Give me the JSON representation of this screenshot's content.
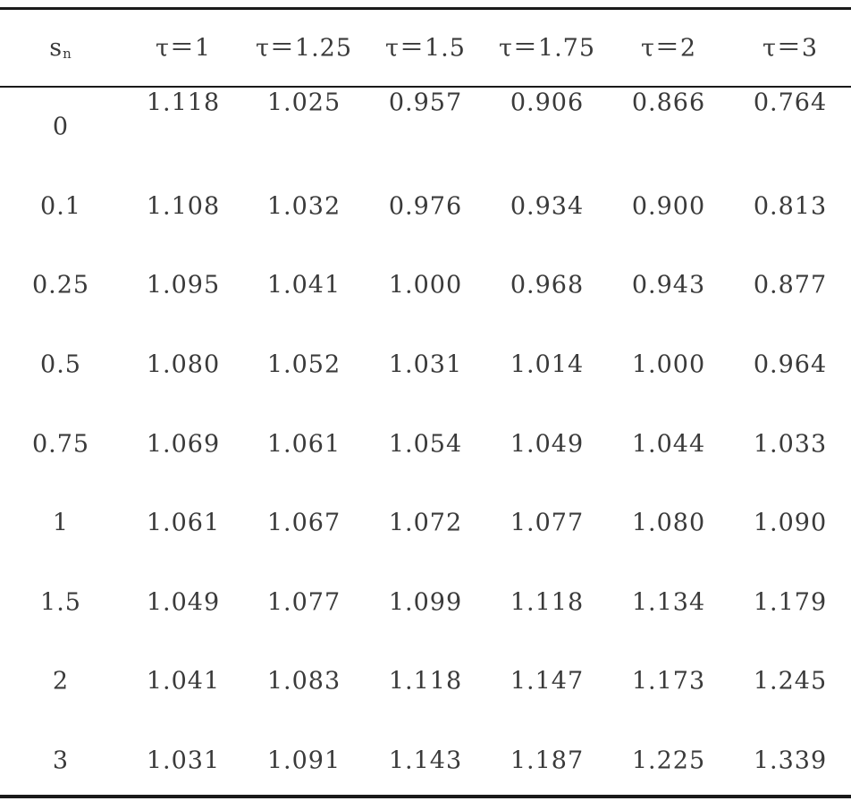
{
  "chart_data": {
    "type": "table",
    "header": {
      "row_label": {
        "base": "s",
        "subscript": "n"
      },
      "columns": [
        "τ＝1",
        "τ＝1.25",
        "τ＝1.5",
        "τ＝1.75",
        "τ＝2",
        "τ＝3"
      ]
    },
    "rows": [
      {
        "s_n": "0",
        "values": [
          "1.118",
          "1.025",
          "0.957",
          "0.906",
          "0.866",
          "0.764"
        ]
      },
      {
        "s_n": "0.1",
        "values": [
          "1.108",
          "1.032",
          "0.976",
          "0.934",
          "0.900",
          "0.813"
        ]
      },
      {
        "s_n": "0.25",
        "values": [
          "1.095",
          "1.041",
          "1.000",
          "0.968",
          "0.943",
          "0.877"
        ]
      },
      {
        "s_n": "0.5",
        "values": [
          "1.080",
          "1.052",
          "1.031",
          "1.014",
          "1.000",
          "0.964"
        ]
      },
      {
        "s_n": "0.75",
        "values": [
          "1.069",
          "1.061",
          "1.054",
          "1.049",
          "1.044",
          "1.033"
        ]
      },
      {
        "s_n": "1",
        "values": [
          "1.061",
          "1.067",
          "1.072",
          "1.077",
          "1.080",
          "1.090"
        ]
      },
      {
        "s_n": "1.5",
        "values": [
          "1.049",
          "1.077",
          "1.099",
          "1.118",
          "1.134",
          "1.179"
        ]
      },
      {
        "s_n": "2",
        "values": [
          "1.041",
          "1.083",
          "1.118",
          "1.147",
          "1.173",
          "1.245"
        ]
      },
      {
        "s_n": "3",
        "values": [
          "1.031",
          "1.091",
          "1.143",
          "1.187",
          "1.225",
          "1.339"
        ]
      }
    ]
  }
}
